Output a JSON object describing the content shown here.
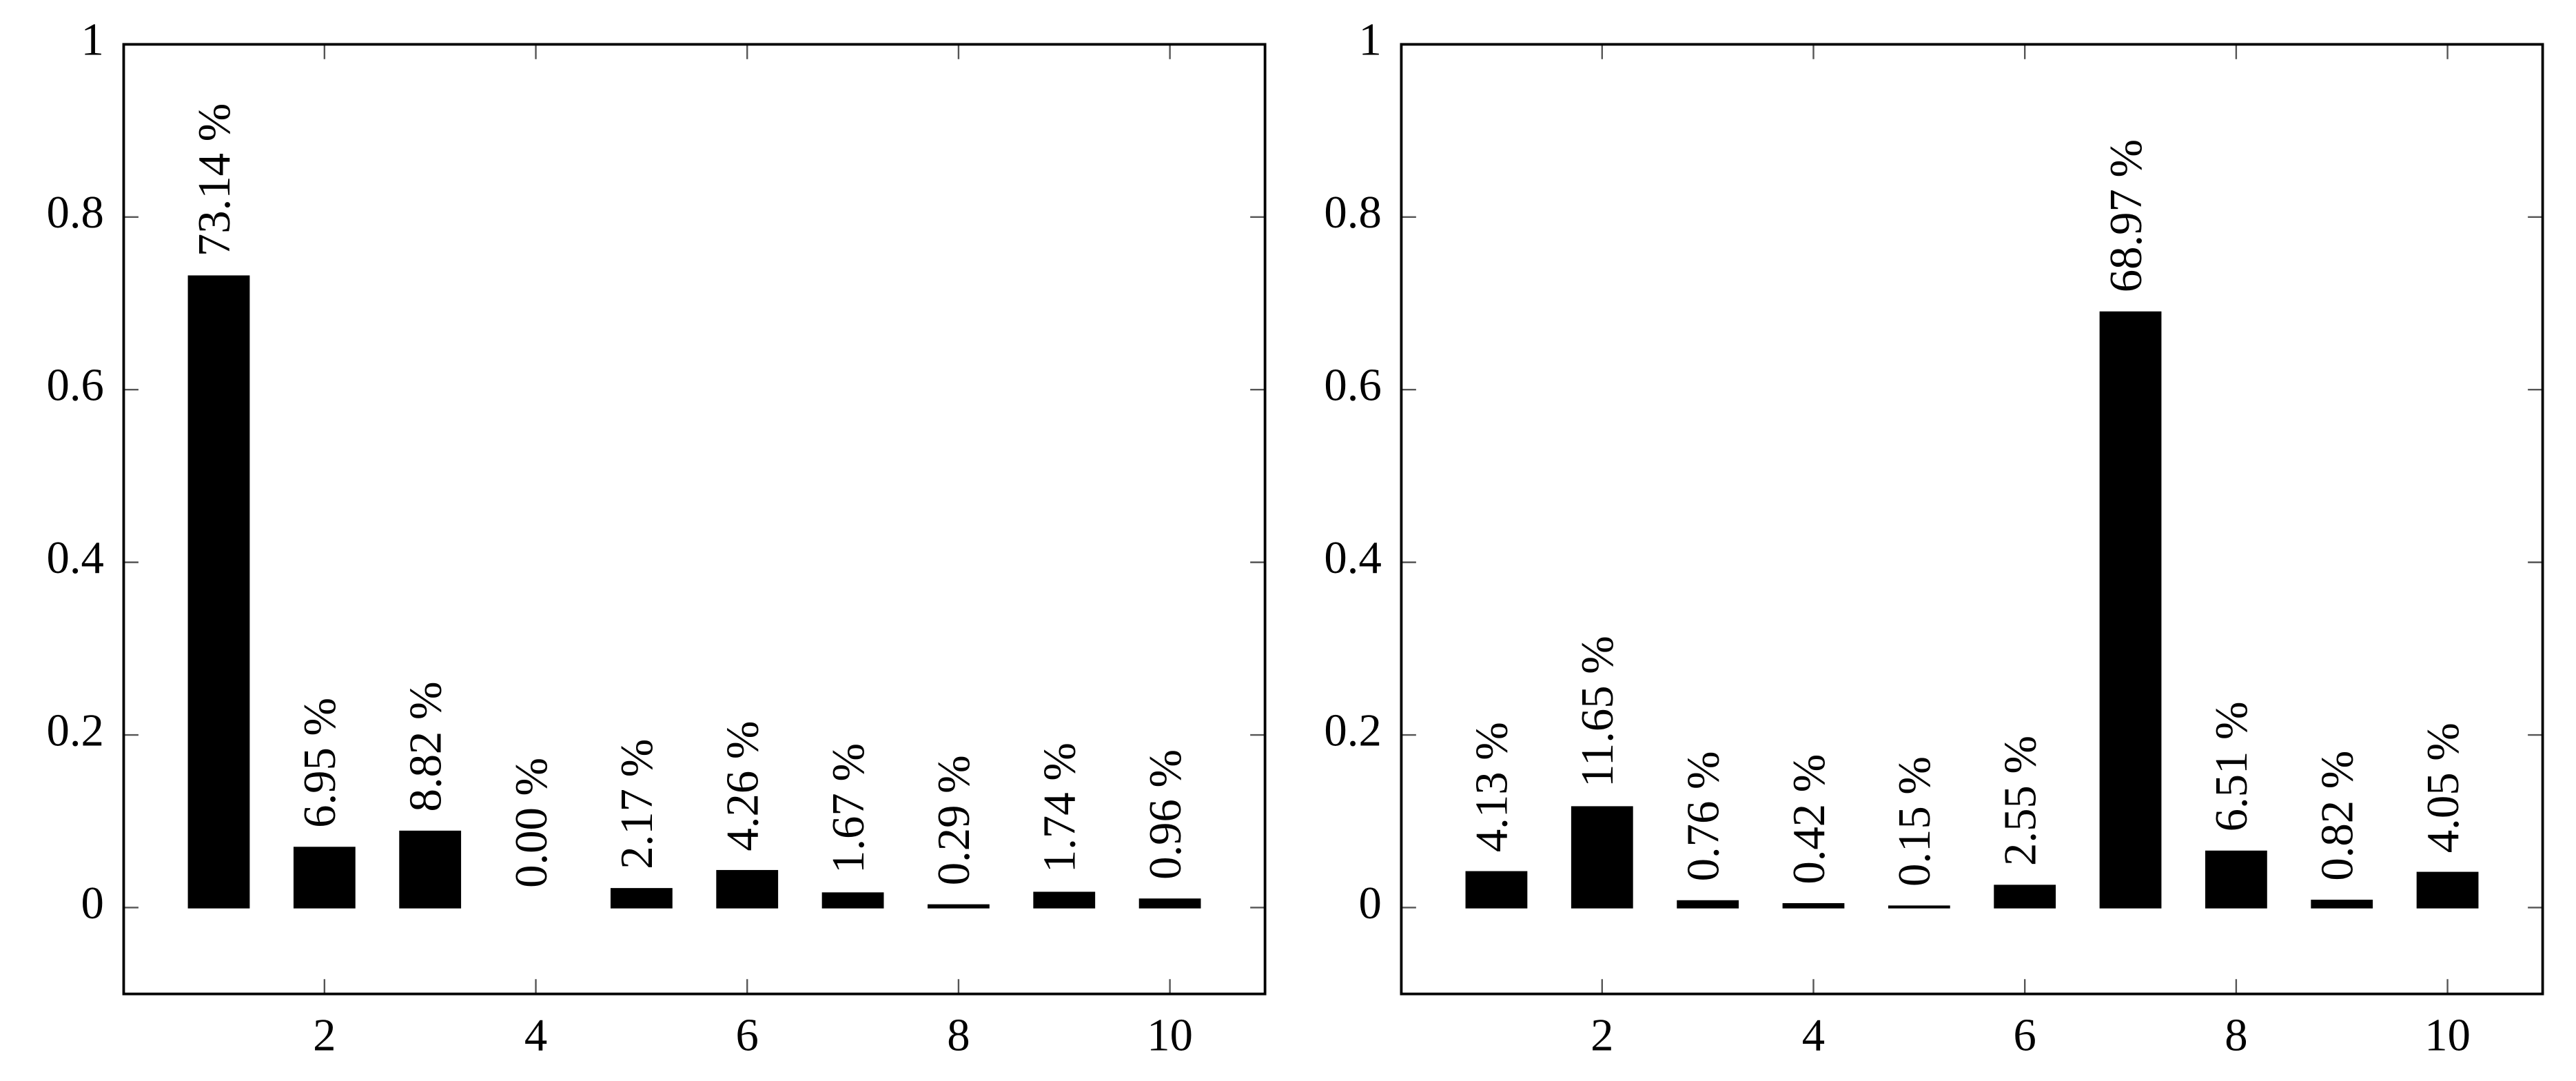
{
  "chart_data": [
    {
      "type": "bar",
      "x": [
        1,
        2,
        3,
        4,
        5,
        6,
        7,
        8,
        9,
        10
      ],
      "values": [
        0.7314,
        0.0695,
        0.0882,
        0.0,
        0.0217,
        0.0426,
        0.0167,
        0.0029,
        0.0174,
        0.0096
      ],
      "value_labels": [
        "73.14 %",
        "6.95 %",
        "8.82 %",
        "0.00 %",
        "2.17 %",
        "4.26 %",
        "1.67 %",
        "0.29 %",
        "1.74 %",
        "0.96 %"
      ],
      "color": "#000000",
      "xlim": [
        0.1,
        10.9
      ],
      "ylim": [
        -0.1,
        1
      ],
      "xticks": [
        2,
        4,
        6,
        8,
        10
      ],
      "yticks": [
        0,
        0.2,
        0.4,
        0.6,
        0.8,
        1
      ]
    },
    {
      "type": "bar",
      "x": [
        1,
        2,
        3,
        4,
        5,
        6,
        7,
        8,
        9,
        10
      ],
      "values": [
        0.0413,
        0.1165,
        0.0076,
        0.0042,
        0.0015,
        0.0255,
        0.6897,
        0.0651,
        0.0082,
        0.0405
      ],
      "value_labels": [
        "4.13 %",
        "11.65 %",
        "0.76 %",
        "0.42 %",
        "0.15 %",
        "2.55 %",
        "68.97 %",
        "6.51 %",
        "0.82 %",
        "4.05 %"
      ],
      "color": "#000000",
      "xlim": [
        0.1,
        10.9
      ],
      "ylim": [
        -0.1,
        1
      ],
      "xticks": [
        2,
        4,
        6,
        8,
        10
      ],
      "yticks": [
        0,
        0.2,
        0.4,
        0.6,
        0.8,
        1
      ]
    }
  ]
}
